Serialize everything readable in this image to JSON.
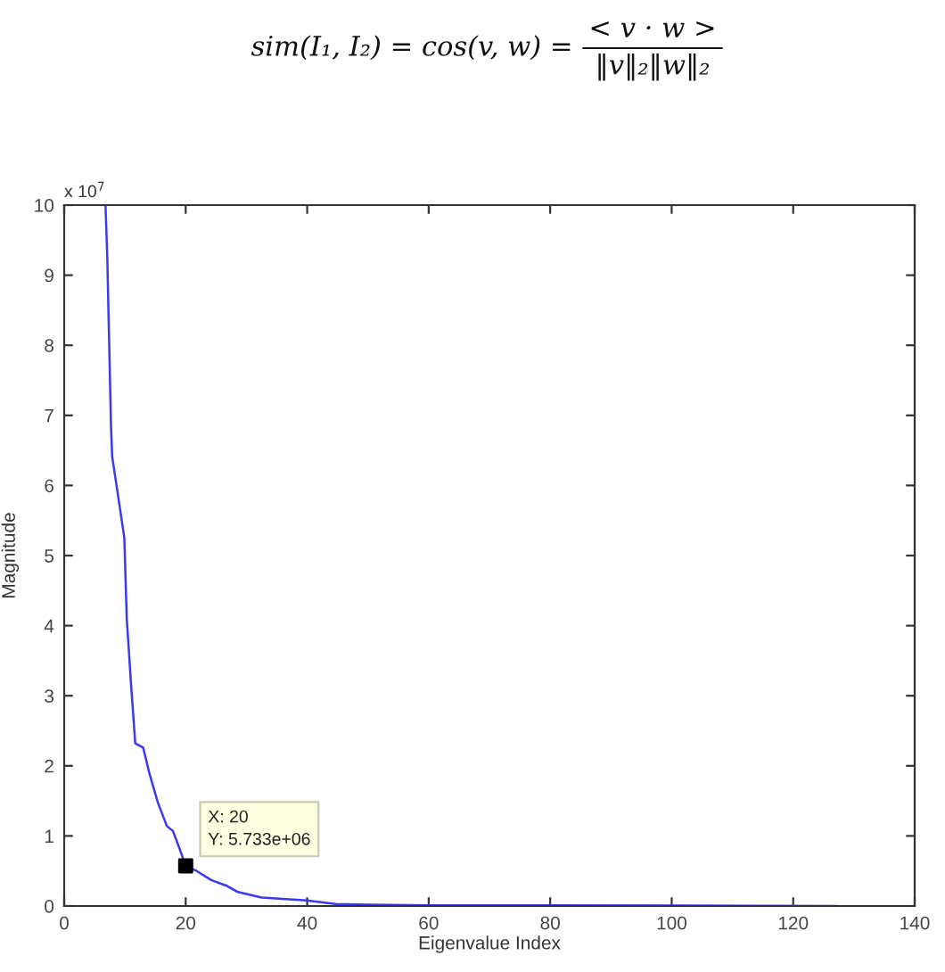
{
  "chart_data": {
    "type": "line",
    "xlabel": "Eigenvalue Index",
    "ylabel": "Magnitude",
    "series": [
      {
        "color": "#3a3af0",
        "x": [
          6.8,
          7.1,
          7.3,
          7.5,
          7.7,
          7.9,
          9.1,
          9.9,
          10.3,
          11.0,
          11.7,
          13.0,
          14.0,
          15.4,
          16.9,
          17.9,
          18.9,
          20,
          21.8,
          24.2,
          26.7,
          28.6,
          32.5,
          39.9,
          44.7,
          50.1,
          60,
          80,
          127.2
        ],
        "values": [
          10,
          9.24,
          8.43,
          7.67,
          6.86,
          6.41,
          5.72,
          5.25,
          4.1,
          3.17,
          2.32,
          2.26,
          1.9,
          1.48,
          1.14,
          1.07,
          0.84,
          0.57,
          0.5,
          0.37,
          0.29,
          0.2,
          0.12,
          0.08,
          0.03,
          0.02,
          0.01,
          0.01,
          0
        ]
      },
      {
        "type": "scatter",
        "marker": "square",
        "color": "#000000",
        "x": [
          20
        ],
        "values": [
          0.5733
        ]
      }
    ],
    "xlim": [
      0,
      140
    ],
    "xticks": [
      0,
      20,
      40,
      60,
      80,
      100,
      120,
      140
    ],
    "ylim": [
      0,
      10
    ],
    "yticks": [
      0,
      1,
      2,
      3,
      4,
      5,
      6,
      7,
      8,
      9,
      10
    ],
    "annotations": [
      "sim(I₁, I₂) = cos(v, w) =",
      "< v · w >",
      "‖v‖₂‖w‖₂",
      "x 10$^{7}$",
      {
        "text": "X: 20\nY: 5.733e+06",
        "x": 20,
        "y": 0.5733
      }
    ]
  }
}
